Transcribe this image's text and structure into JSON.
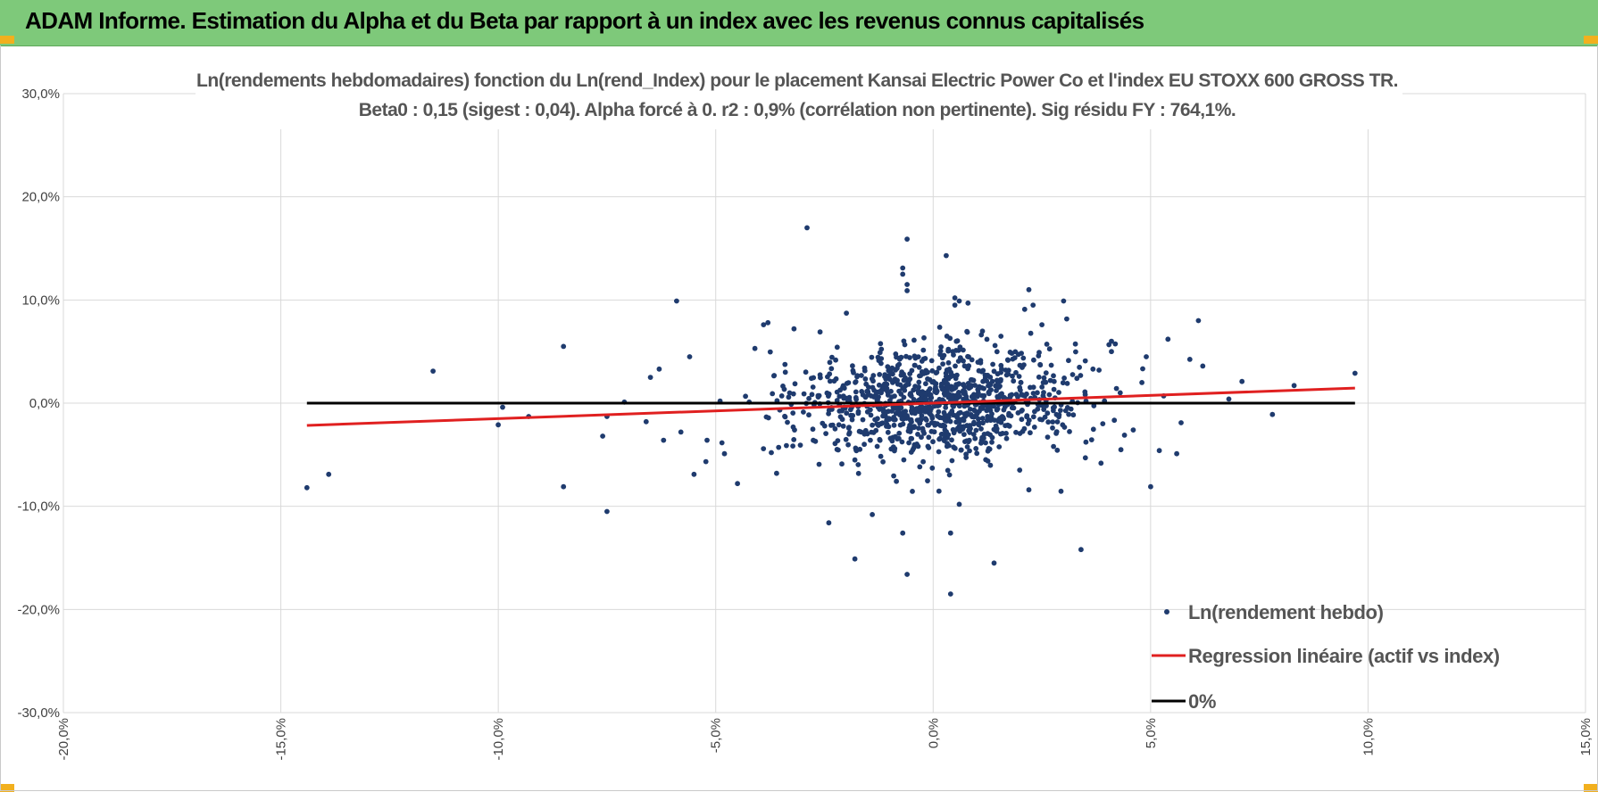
{
  "header": {
    "title": "ADAM Informe. Estimation du Alpha et du Beta par rapport à un index avec les revenus connus capitalisés"
  },
  "colors": {
    "header_bg": "#7ec97a",
    "points": "#1f3b6e",
    "regression": "#e02020",
    "zero_line": "#000000",
    "grid": "#d9d9d9"
  },
  "chart_data": {
    "type": "scatter",
    "title": [
      "Ln(rendements hebdomadaires) fonction du Ln(rend_Index) pour le placement Kansai Electric Power Co  et l'index EU STOXX 600 GROSS TR.",
      "Beta0 : 0,15  (sigest : 0,04). Alpha forcé à 0. r2 : 0,9% (corrélation non pertinente). Sig résidu FY : 764,1%."
    ],
    "xlim": [
      -20,
      15
    ],
    "ylim": [
      -30,
      30
    ],
    "x_ticks": [
      -20,
      -15,
      -10,
      -5,
      0,
      5,
      10,
      15
    ],
    "y_ticks": [
      -30,
      -20,
      -10,
      0,
      10,
      20,
      30
    ],
    "x_tick_labels": [
      "-20,0%",
      "-15,0%",
      "-10,0%",
      "-5,0%",
      "0,0%",
      "5,0%",
      "10,0%",
      "15,0%"
    ],
    "y_tick_labels": [
      "-30,0%",
      "-20,0%",
      "-10,0%",
      "0,0%",
      "10,0%",
      "20,0%",
      "30,0%"
    ],
    "grid": true,
    "legend_position": "bottom-right",
    "legend": [
      "Ln(rendement hebdo)",
      "Regression linéaire (actif vs index)",
      "0%"
    ],
    "regression": {
      "beta": 0.15,
      "alpha": 0,
      "x_range": [
        -14.4,
        9.7
      ]
    },
    "zero_line": {
      "x_range": [
        -14.4,
        9.7
      ],
      "y": 0
    },
    "cloud": {
      "count": 1050,
      "x_mean": 0.1,
      "x_sd": 1.65,
      "y_sd": 2.7,
      "seed": 17
    },
    "outliers": [
      [
        -14.4,
        -8.2
      ],
      [
        -13.9,
        -6.9
      ],
      [
        -11.5,
        3.1
      ],
      [
        -10.0,
        -2.1
      ],
      [
        -9.9,
        -0.4
      ],
      [
        -9.3,
        -1.3
      ],
      [
        -8.5,
        5.5
      ],
      [
        -8.5,
        -8.1
      ],
      [
        -7.5,
        -10.5
      ],
      [
        -7.5,
        -1.3
      ],
      [
        -7.6,
        -3.2
      ],
      [
        -7.1,
        0.1
      ],
      [
        -6.5,
        2.5
      ],
      [
        -6.3,
        3.3
      ],
      [
        -5.9,
        9.9
      ],
      [
        -5.6,
        4.5
      ],
      [
        -5.5,
        -6.9
      ],
      [
        -5.2,
        -3.6
      ],
      [
        -4.8,
        -4.9
      ],
      [
        -4.5,
        -7.8
      ],
      [
        -4.1,
        5.3
      ],
      [
        -3.9,
        7.6
      ],
      [
        -3.8,
        7.8
      ],
      [
        -3.2,
        7.2
      ],
      [
        -2.9,
        17.0
      ],
      [
        -2.6,
        6.9
      ],
      [
        -2.4,
        -11.6
      ],
      [
        -1.8,
        -15.1
      ],
      [
        -1.4,
        -10.8
      ],
      [
        -0.7,
        -12.6
      ],
      [
        -0.6,
        -16.6
      ],
      [
        -0.6,
        15.9
      ],
      [
        -0.7,
        13.1
      ],
      [
        -0.7,
        12.5
      ],
      [
        -0.6,
        11.5
      ],
      [
        -0.6,
        10.9
      ],
      [
        0.3,
        14.3
      ],
      [
        0.5,
        10.2
      ],
      [
        0.6,
        9.9
      ],
      [
        0.5,
        9.5
      ],
      [
        0.8,
        9.7
      ],
      [
        0.4,
        -18.5
      ],
      [
        0.4,
        -12.6
      ],
      [
        0.6,
        -9.8
      ],
      [
        1.4,
        -15.5
      ],
      [
        2.2,
        -8.4
      ],
      [
        2.2,
        11.0
      ],
      [
        2.5,
        7.6
      ],
      [
        3.0,
        9.9
      ],
      [
        3.4,
        -14.2
      ],
      [
        3.5,
        -5.3
      ],
      [
        4.1,
        6.0
      ],
      [
        4.4,
        -3.1
      ],
      [
        4.6,
        -2.6
      ],
      [
        4.9,
        4.5
      ],
      [
        5.0,
        -8.1
      ],
      [
        5.2,
        -4.6
      ],
      [
        5.4,
        6.2
      ],
      [
        5.7,
        -1.9
      ],
      [
        5.6,
        -4.9
      ],
      [
        6.1,
        8.0
      ],
      [
        6.2,
        3.6
      ],
      [
        7.1,
        2.1
      ],
      [
        7.8,
        -1.1
      ],
      [
        8.3,
        1.7
      ],
      [
        9.7,
        2.9
      ],
      [
        4.3,
        1.0
      ],
      [
        4.8,
        2.0
      ],
      [
        3.9,
        -2.0
      ],
      [
        -3.4,
        3.0
      ],
      [
        -2.1,
        -5.9
      ],
      [
        -6.6,
        -1.8
      ],
      [
        -4.9,
        0.2
      ],
      [
        -3.6,
        -6.8
      ],
      [
        6.8,
        0.4
      ],
      [
        5.3,
        0.7
      ],
      [
        -5.8,
        -2.8
      ],
      [
        -6.2,
        -3.6
      ]
    ]
  }
}
